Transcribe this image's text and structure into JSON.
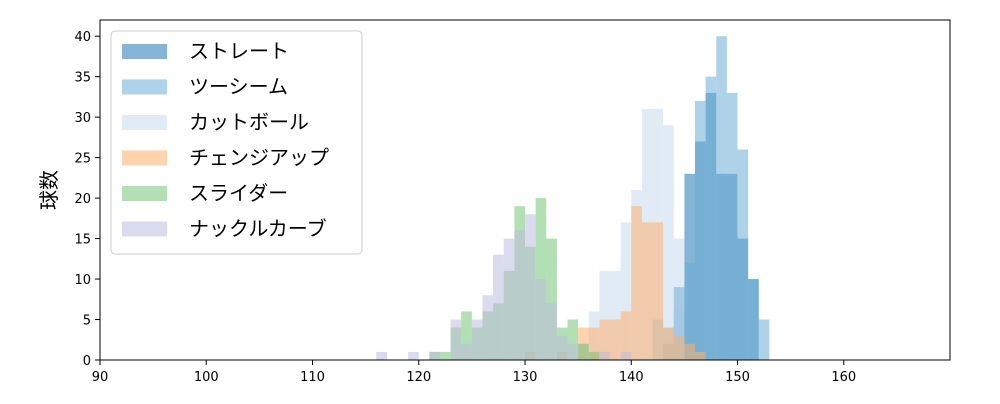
{
  "chart_data": {
    "type": "bar",
    "subtype": "overlapping-histogram",
    "ylabel": "球数",
    "xlim": [
      90,
      170
    ],
    "ylim": [
      0,
      42
    ],
    "x_ticks": [
      90,
      100,
      110,
      120,
      130,
      140,
      150,
      160
    ],
    "y_ticks": [
      0,
      5,
      10,
      15,
      20,
      25,
      30,
      35,
      40
    ],
    "grid": false,
    "legend_position": "top-left",
    "bar_opacity": 0.55,
    "series": [
      {
        "name": "ストレート",
        "color": "#1f77b4",
        "bins": [
          [
            145,
            146,
            23
          ],
          [
            146,
            147,
            27
          ],
          [
            147,
            148,
            33
          ],
          [
            148,
            149,
            23
          ],
          [
            149,
            150,
            23
          ],
          [
            150,
            151,
            15
          ],
          [
            151,
            152,
            10
          ],
          [
            144,
            145,
            9
          ],
          [
            143,
            144,
            2
          ]
        ]
      },
      {
        "name": "ツーシーム",
        "color": "#6baed6",
        "bins": [
          [
            142,
            143,
            5
          ],
          [
            143,
            144,
            4
          ],
          [
            144,
            145,
            6
          ],
          [
            145,
            146,
            12
          ],
          [
            146,
            147,
            32
          ],
          [
            147,
            148,
            35
          ],
          [
            148,
            149,
            40
          ],
          [
            149,
            150,
            33
          ],
          [
            150,
            151,
            26
          ],
          [
            151,
            152,
            10
          ],
          [
            152,
            153,
            5
          ]
        ]
      },
      {
        "name": "カットボール",
        "color": "#c6dbef",
        "bins": [
          [
            135,
            136,
            2
          ],
          [
            136,
            137,
            6
          ],
          [
            137,
            138,
            11
          ],
          [
            138,
            139,
            11
          ],
          [
            139,
            140,
            17
          ],
          [
            140,
            141,
            21
          ],
          [
            141,
            142,
            31
          ],
          [
            142,
            143,
            31
          ],
          [
            143,
            144,
            29
          ],
          [
            144,
            145,
            15
          ]
        ]
      },
      {
        "name": "チェンジアップ",
        "color": "#fdae6b",
        "bins": [
          [
            130,
            131,
            1
          ],
          [
            133,
            134,
            1
          ],
          [
            135,
            136,
            4
          ],
          [
            136,
            137,
            4
          ],
          [
            137,
            138,
            5
          ],
          [
            138,
            139,
            5
          ],
          [
            139,
            140,
            6
          ],
          [
            140,
            141,
            19
          ],
          [
            141,
            142,
            17
          ],
          [
            142,
            143,
            17
          ],
          [
            143,
            144,
            4
          ],
          [
            144,
            145,
            3
          ],
          [
            145,
            146,
            2
          ],
          [
            146,
            147,
            1
          ]
        ]
      },
      {
        "name": "スライダー",
        "color": "#74c476",
        "bins": [
          [
            121,
            122,
            1
          ],
          [
            122,
            123,
            1
          ],
          [
            123,
            124,
            4
          ],
          [
            124,
            125,
            6
          ],
          [
            125,
            126,
            4
          ],
          [
            126,
            127,
            6
          ],
          [
            127,
            128,
            7
          ],
          [
            128,
            129,
            11
          ],
          [
            129,
            130,
            19
          ],
          [
            130,
            131,
            14
          ],
          [
            131,
            132,
            20
          ],
          [
            132,
            133,
            15
          ],
          [
            133,
            134,
            4
          ],
          [
            134,
            135,
            5
          ],
          [
            135,
            136,
            2
          ],
          [
            136,
            137,
            1
          ]
        ]
      },
      {
        "name": "ナックルカーブ",
        "color": "#bcbddc",
        "bins": [
          [
            116,
            117,
            1
          ],
          [
            119,
            120,
            1
          ],
          [
            121,
            122,
            1
          ],
          [
            123,
            124,
            5
          ],
          [
            124,
            125,
            2
          ],
          [
            125,
            126,
            5
          ],
          [
            126,
            127,
            8
          ],
          [
            127,
            128,
            13
          ],
          [
            128,
            129,
            15
          ],
          [
            129,
            130,
            16
          ],
          [
            130,
            131,
            18
          ],
          [
            131,
            132,
            10
          ],
          [
            132,
            133,
            7
          ],
          [
            133,
            134,
            3
          ],
          [
            134,
            135,
            2
          ],
          [
            137,
            138,
            1
          ],
          [
            139,
            140,
            1
          ]
        ]
      }
    ]
  }
}
